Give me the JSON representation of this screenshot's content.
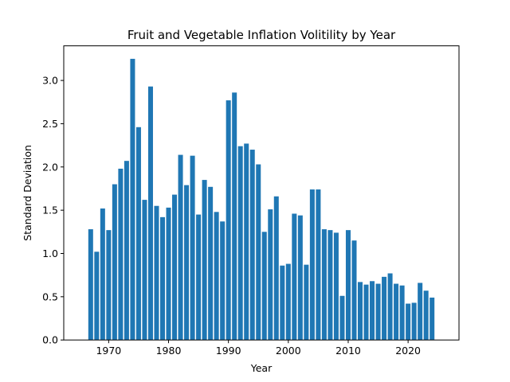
{
  "chart_data": {
    "type": "bar",
    "title": "Fruit and Vegetable Inflation Volitility by Year",
    "xlabel": "Year",
    "ylabel": "Standard Deviation",
    "xlim": [
      1962.5,
      2028.5
    ],
    "ylim": [
      0,
      3.4
    ],
    "xticks": [
      1970,
      1980,
      1990,
      2000,
      2010,
      2020
    ],
    "yticks": [
      "0.0",
      "0.5",
      "1.0",
      "1.5",
      "2.0",
      "2.5",
      "3.0"
    ],
    "grid": false,
    "color": "#1f77b4",
    "x": [
      1967,
      1968,
      1969,
      1970,
      1971,
      1972,
      1973,
      1974,
      1975,
      1976,
      1977,
      1978,
      1979,
      1980,
      1981,
      1982,
      1983,
      1984,
      1985,
      1986,
      1987,
      1988,
      1989,
      1990,
      1991,
      1992,
      1993,
      1994,
      1995,
      1996,
      1997,
      1998,
      1999,
      2000,
      2001,
      2002,
      2003,
      2004,
      2005,
      2006,
      2007,
      2008,
      2009,
      2010,
      2011,
      2012,
      2013,
      2014,
      2015,
      2016,
      2017,
      2018,
      2019,
      2020,
      2021,
      2022,
      2023,
      2024
    ],
    "values": [
      1.28,
      1.02,
      1.52,
      1.27,
      1.8,
      1.98,
      2.07,
      3.25,
      2.46,
      1.62,
      2.93,
      1.55,
      1.42,
      1.53,
      1.68,
      2.14,
      1.79,
      2.13,
      1.45,
      1.85,
      1.77,
      1.48,
      1.37,
      2.77,
      2.86,
      2.24,
      2.27,
      2.2,
      2.03,
      1.25,
      1.51,
      1.66,
      0.86,
      0.88,
      1.46,
      1.44,
      0.87,
      1.74,
      1.74,
      1.28,
      1.27,
      1.24,
      0.51,
      1.27,
      1.15,
      0.67,
      0.64,
      0.68,
      0.65,
      0.73,
      0.77,
      0.65,
      0.63,
      0.42,
      0.43,
      0.66,
      0.57,
      0.49
    ]
  }
}
